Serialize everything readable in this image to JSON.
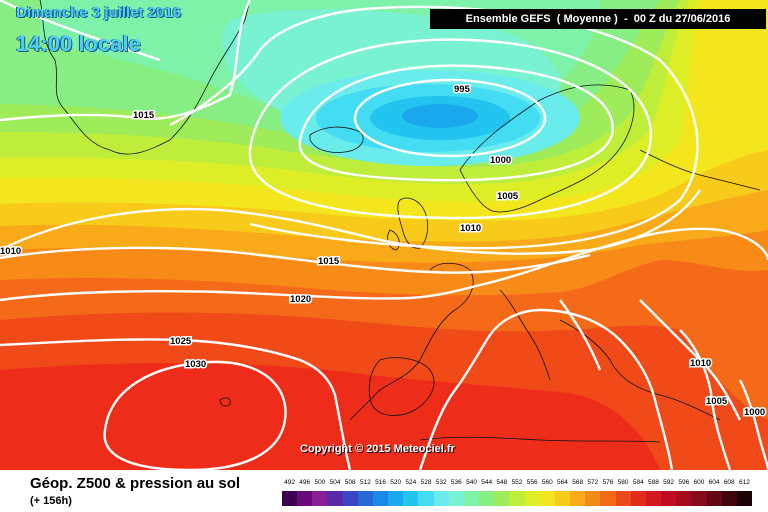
{
  "header": {
    "date": "Dimanche 3 juillet 2016",
    "local_time": "14:00 locale",
    "run_info": "Ensemble GEFS  ( Moyenne )  -  00 Z du 27/06/2016"
  },
  "copyright": "Copyright © 2015 Meteociel.fr",
  "legend": {
    "title": "Géop. Z500 & pression au sol",
    "lead": "(+ 156h)",
    "levels": [
      "492",
      "496",
      "500",
      "504",
      "508",
      "512",
      "516",
      "520",
      "524",
      "528",
      "532",
      "536",
      "540",
      "544",
      "548",
      "552",
      "556",
      "560",
      "564",
      "568",
      "572",
      "576",
      "580",
      "584",
      "588",
      "592",
      "596",
      "600",
      "604",
      "608",
      "612"
    ],
    "colors": [
      "#3c0050",
      "#6a0a7a",
      "#8a1e96",
      "#5a2aa6",
      "#3a46c2",
      "#2a68d6",
      "#1a8ae6",
      "#1aa8ee",
      "#22c4f0",
      "#44dcf2",
      "#6aecec",
      "#78f2d0",
      "#7ef2a8",
      "#86ee82",
      "#9eec5a",
      "#beee3a",
      "#deee26",
      "#f4e61c",
      "#f8ca1a",
      "#f8aa18",
      "#f48a18",
      "#f06a18",
      "#ea4a18",
      "#e22c1a",
      "#d41820",
      "#c00c20",
      "#a60a1c",
      "#880a18",
      "#640814",
      "#3e050c",
      "#1a0206"
    ]
  },
  "isobars": [
    "995",
    "1000",
    "1005",
    "1010",
    "1015",
    "1015",
    "1010",
    "1020",
    "1025",
    "1030",
    "1010",
    "1005",
    "1000"
  ]
}
